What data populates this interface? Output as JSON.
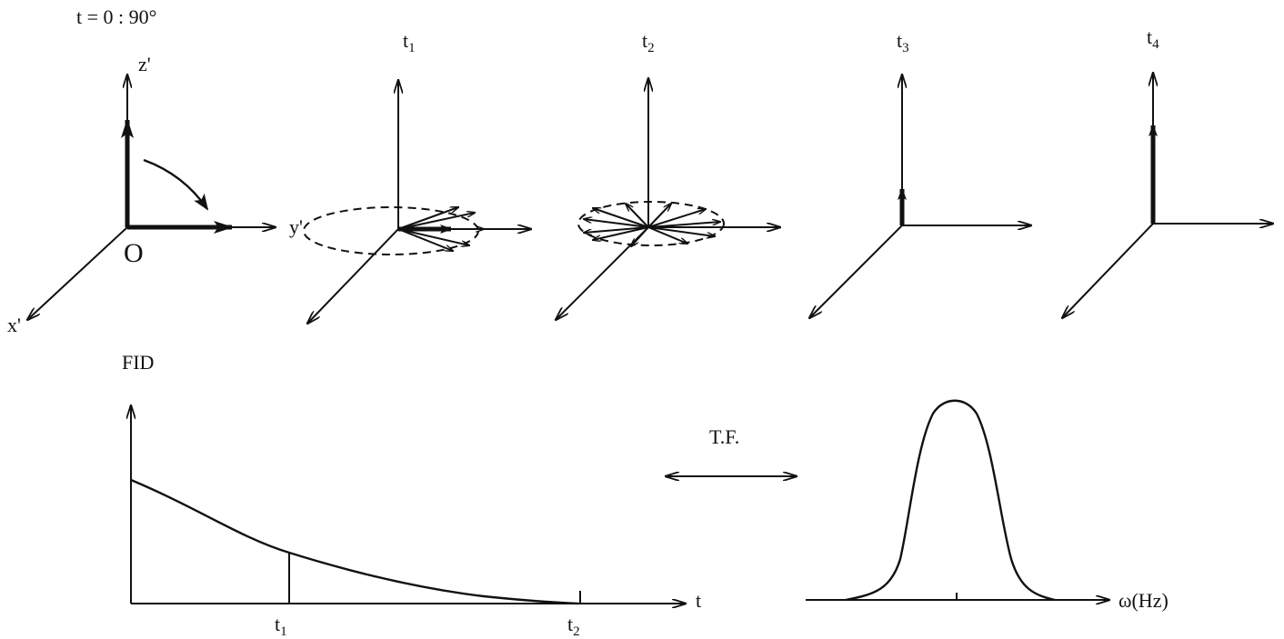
{
  "header": {
    "pulse_label": "t = 0 : 90°"
  },
  "frames": [
    {
      "id": "t0",
      "label": "",
      "label_base": "",
      "label_sub": "",
      "axis_x": "x'",
      "axis_y": "y'",
      "axis_z": "z'",
      "origin": "O"
    },
    {
      "id": "t1",
      "label": "t1",
      "label_base": "t",
      "label_sub": "1"
    },
    {
      "id": "t2",
      "label": "t2",
      "label_base": "t",
      "label_sub": "2"
    },
    {
      "id": "t3",
      "label": "t3",
      "label_base": "t",
      "label_sub": "3"
    },
    {
      "id": "t4",
      "label": "t4",
      "label_base": "t",
      "label_sub": "4"
    }
  ],
  "fid_plot": {
    "ylabel": "FID",
    "xlabel": "t",
    "ticks": [
      {
        "label": "t1",
        "base": "t",
        "sub": "1"
      },
      {
        "label": "t2",
        "base": "t",
        "sub": "2"
      }
    ]
  },
  "transform": {
    "label": "T.F."
  },
  "spectrum_plot": {
    "xlabel": "ω(Hz)"
  },
  "colors": {
    "ink": "#111111",
    "background": "#ffffff"
  }
}
